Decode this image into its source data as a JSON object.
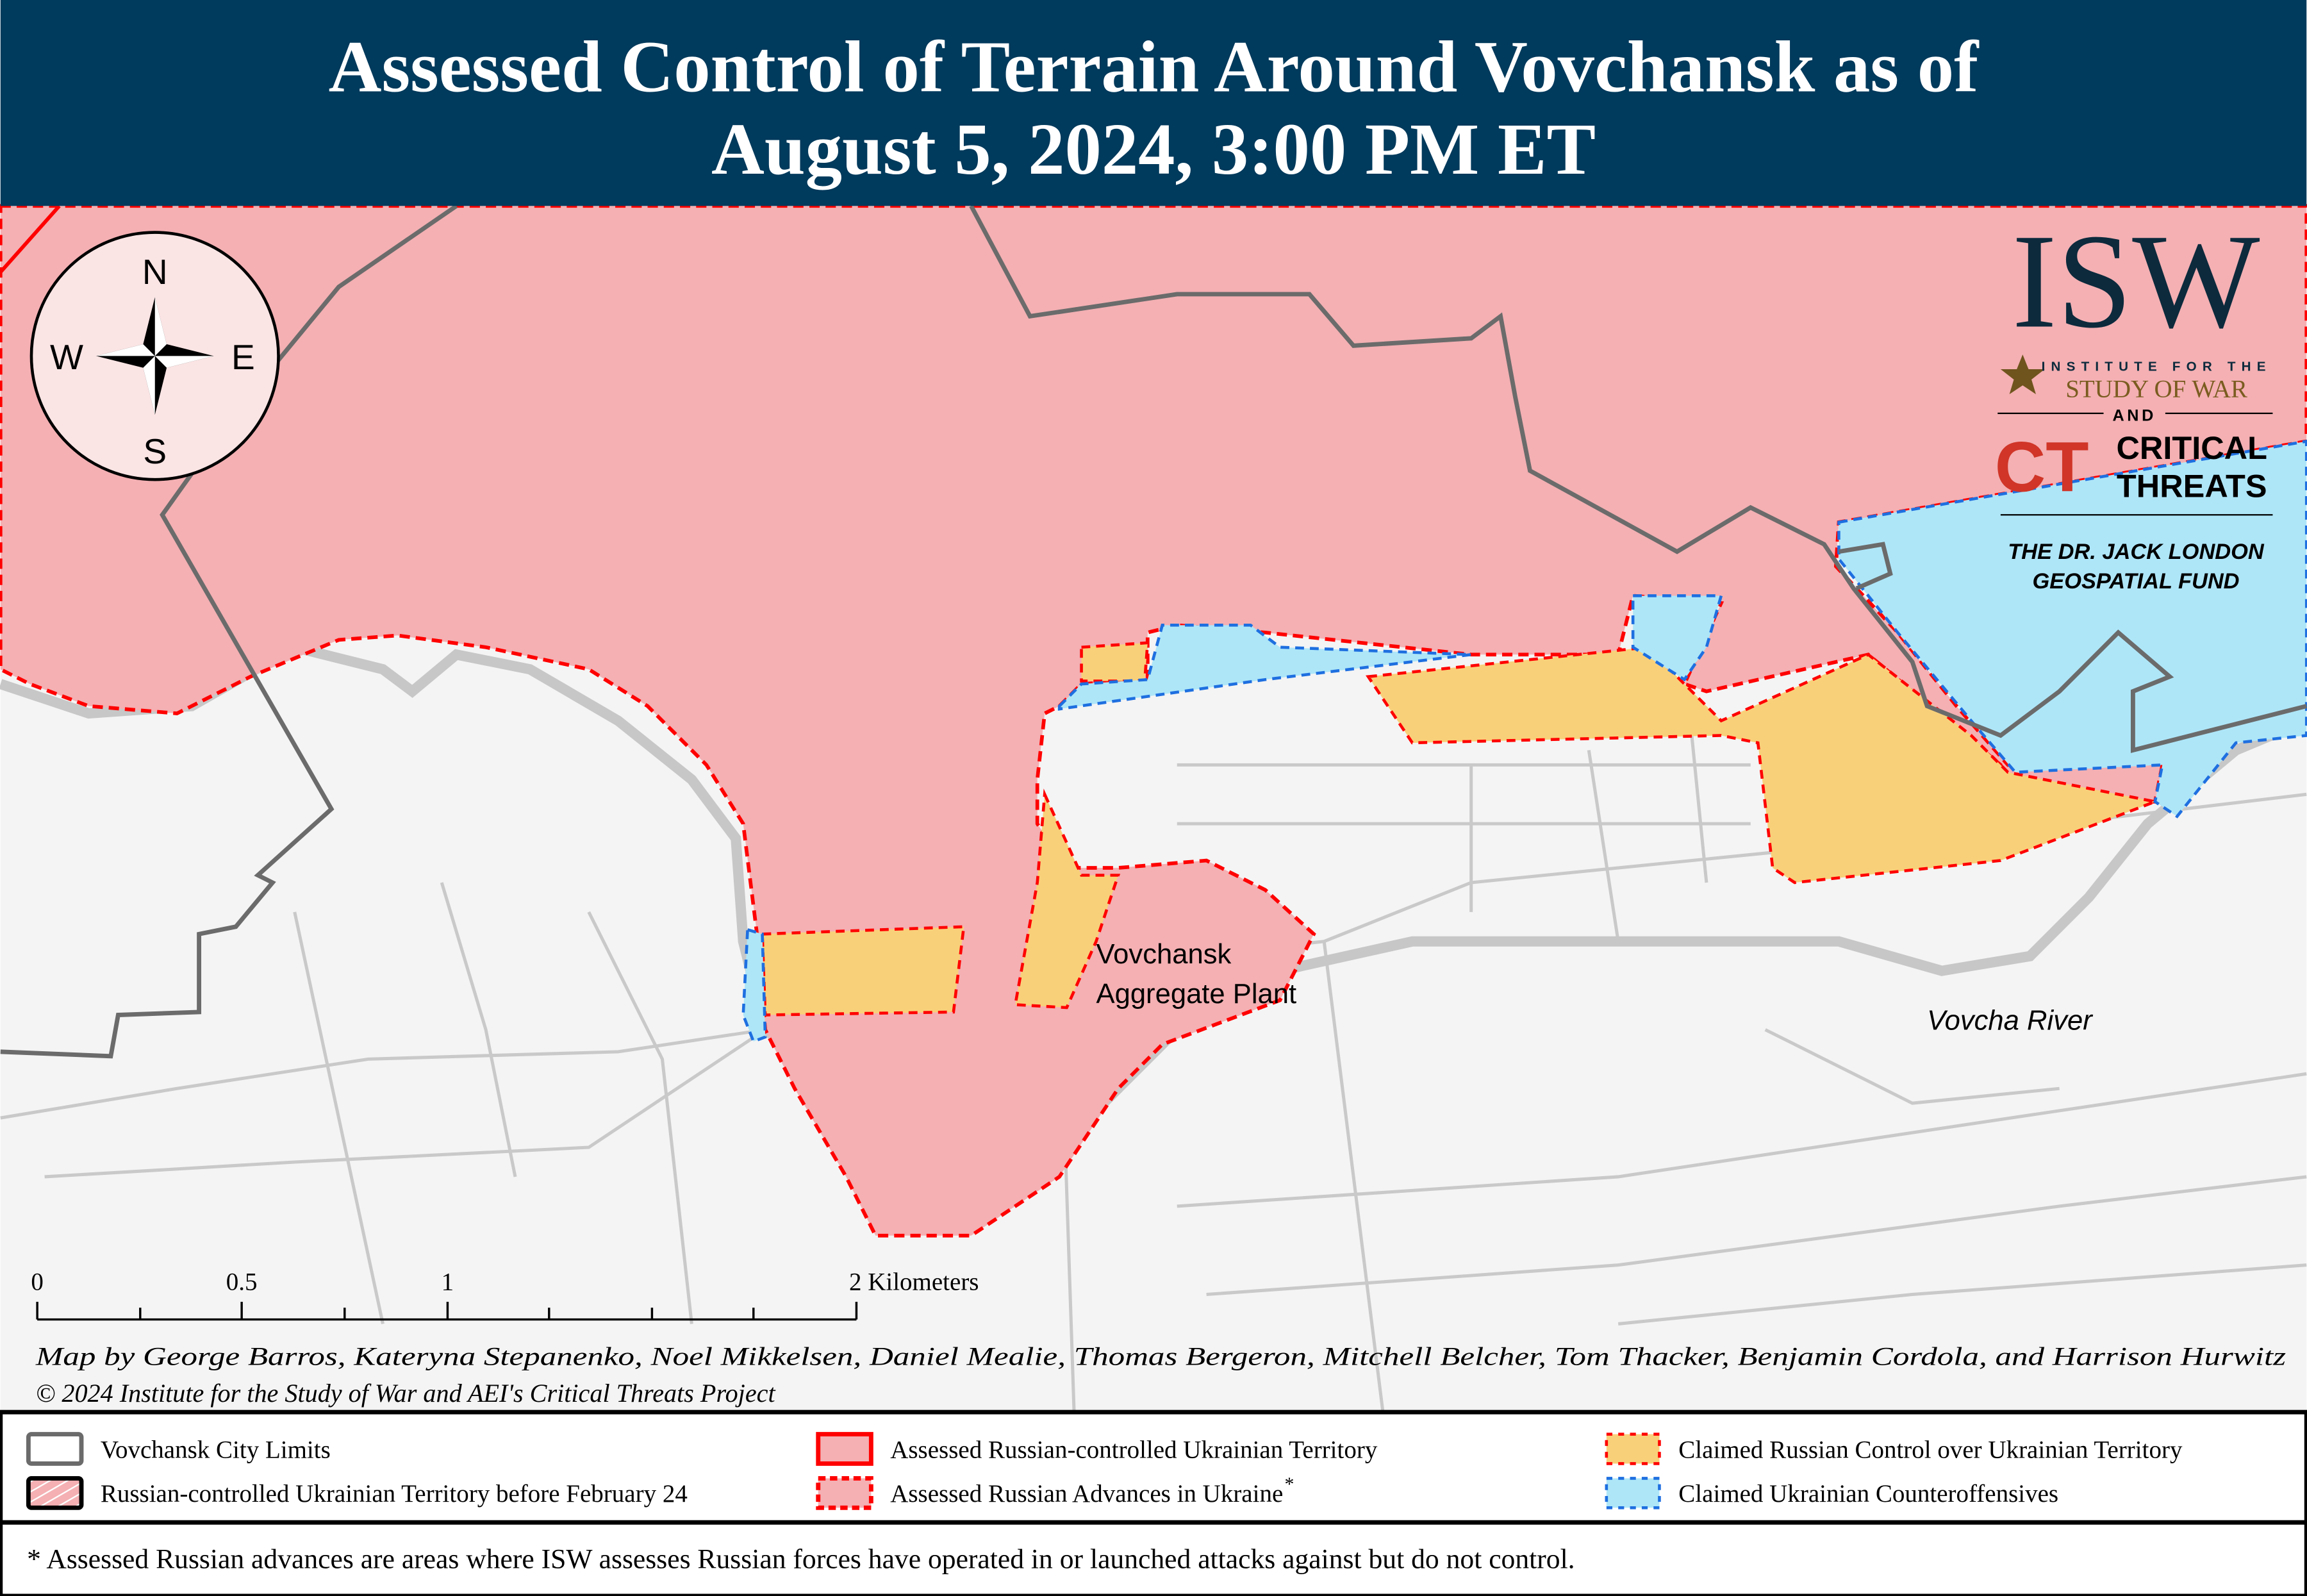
{
  "header": {
    "title_line1": "Assessed Control of Terrain Around Vovchansk as of",
    "title_line2": "August 5, 2024, 3:00 PM ET",
    "background": "#003a5c"
  },
  "colors": {
    "russian_controlled": "#f4b0b3",
    "claimed_russian": "#f9d07a",
    "ukrainian_counteroffensive": "#aee6f8",
    "border_red": "#ff0000",
    "border_blue": "#1e6fe0",
    "city_limits": "#6b6b6b",
    "background": "#f4f4f4"
  },
  "compass": {
    "n": "N",
    "s": "S",
    "e": "E",
    "w": "W",
    "icon": "compass-rose-icon"
  },
  "logo": {
    "isw": "ISW",
    "institute": "INSTITUTE FOR THE",
    "study": "STUDY OF WAR",
    "and": "AND",
    "ct_mark": "CT",
    "critical": "CRITICAL",
    "threats": "THREATS",
    "fund_line1": "THE DR. JACK LONDON",
    "fund_line2": "GEOSPATIAL FUND"
  },
  "map_labels": {
    "plant_line1": "Vovchansk",
    "plant_line2": "Aggregate Plant",
    "river": "Vovcha River"
  },
  "scale_bar": {
    "t0": "0",
    "t1": "0.5",
    "t2": "1",
    "t3": "2 Kilometers"
  },
  "credits": {
    "authors": "Map by George Barros, Kateryna Stepanenko, Noel Mikkelsen, Daniel Mealie, Thomas Bergeron, Mitchell Belcher, Tom Thacker, Benjamin Cordola, and Harrison Hurwitz",
    "copyright": "© 2024 Institute for the Study of War and AEI's Critical Threats Project"
  },
  "legend": {
    "items": [
      {
        "label": "Vovchansk City Limits"
      },
      {
        "label": "Russian-controlled Ukrainian Territory before February 24"
      },
      {
        "label": "Assessed Russian-controlled Ukrainian Territory"
      },
      {
        "label": "Assessed Russian Advances in Ukraine",
        "sup": "*"
      },
      {
        "label": "Claimed Russian Control over Ukrainian Territory"
      },
      {
        "label": "Claimed Ukrainian Counteroffensives"
      }
    ]
  },
  "footnote": "* Assessed Russian advances are areas where ISW assesses Russian forces have operated in or launched attacks against but do not control."
}
